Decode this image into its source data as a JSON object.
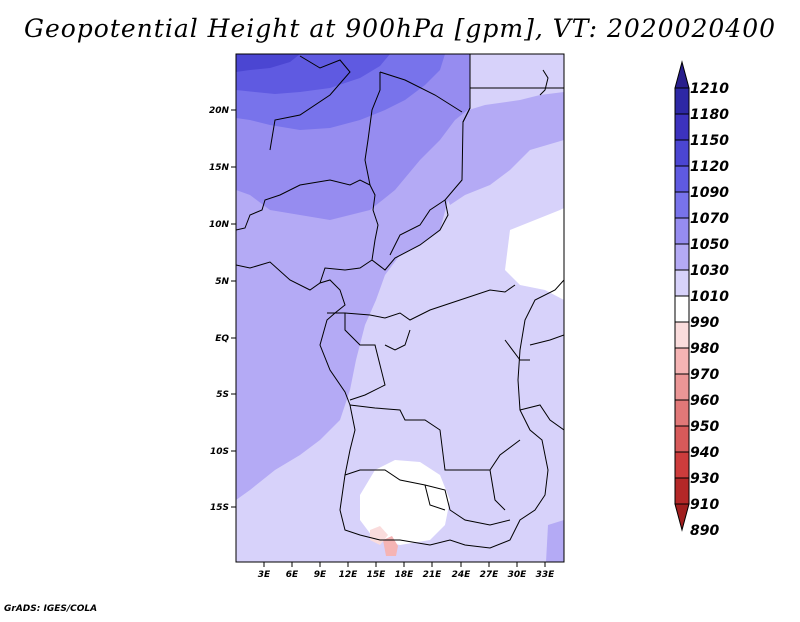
{
  "title": "Geopotential Height at 900hPa [gpm], VT: 2020020400",
  "credit": "GrADS: IGES/COLA",
  "map": {
    "lat_labels": [
      "20N",
      "15N",
      "10N",
      "5N",
      "EQ",
      "5S",
      "10S",
      "15S"
    ],
    "lon_labels": [
      "3E",
      "6E",
      "9E",
      "12E",
      "15E",
      "18E",
      "21E",
      "24E",
      "27E",
      "30E",
      "33E"
    ]
  },
  "colorbar": {
    "levels": [
      "1210",
      "1180",
      "1150",
      "1120",
      "1090",
      "1070",
      "1050",
      "1030",
      "1010",
      "990",
      "980",
      "970",
      "960",
      "950",
      "940",
      "930",
      "910",
      "890"
    ],
    "colors": [
      "#281e8c",
      "#2d28a5",
      "#3c32be",
      "#4b46d2",
      "#5f5ae1",
      "#7873eb",
      "#968cf0",
      "#b4aaf5",
      "#d7d2fa",
      "#ffffff",
      "#fadcdc",
      "#f5b4b4",
      "#eb9696",
      "#e17878",
      "#d75a5a",
      "#cd3c3c",
      "#b42828",
      "#a01e1e"
    ]
  }
}
